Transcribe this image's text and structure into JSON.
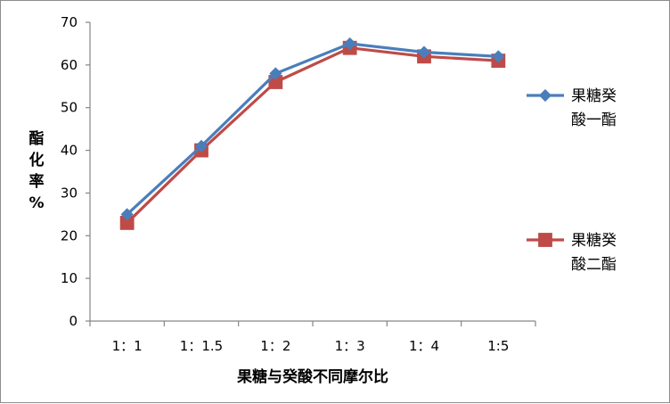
{
  "chart_data": {
    "type": "line",
    "categories": [
      "1：1",
      "1：1.5",
      "1：2",
      "1：3",
      "1：4",
      "1:5"
    ],
    "series": [
      {
        "name": "果糖癸酸一酯",
        "values": [
          25,
          41,
          58,
          65,
          63,
          62
        ],
        "color": "#4a7ebb",
        "marker": "diamond"
      },
      {
        "name": "果糖癸酸二酯",
        "values": [
          23,
          40,
          56,
          64,
          62,
          61
        ],
        "color": "#be4b48",
        "marker": "square"
      }
    ],
    "xlabel": "果糖与癸酸不同摩尔比",
    "ylabel": "酯化率%",
    "ylim": [
      0,
      70
    ],
    "yticks": [
      0,
      10,
      20,
      30,
      40,
      50,
      60,
      70
    ],
    "grid": false,
    "legend_position": "right"
  }
}
